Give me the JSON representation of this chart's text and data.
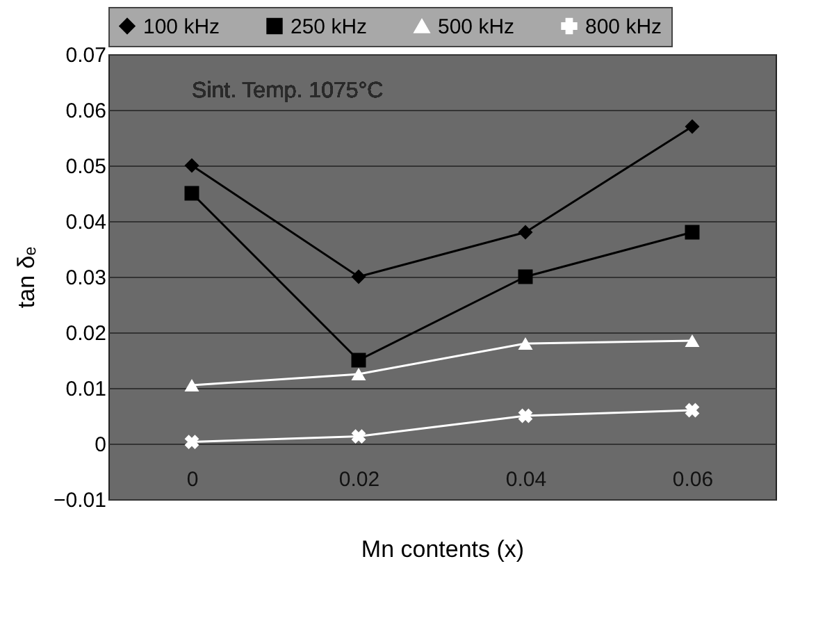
{
  "chart_data": {
    "type": "line",
    "xlabel": "Mn contents (x)",
    "ylabel": "tan δₑ",
    "annotations": [
      "Sint. Temp. 1075°C"
    ],
    "categories": [
      "0",
      "0.02",
      "0.04",
      "0.06"
    ],
    "series": [
      {
        "name": "100 kHz",
        "color": "#000000",
        "marker": "diamond",
        "values": [
          0.05,
          0.03,
          0.038,
          0.057
        ]
      },
      {
        "name": "250 kHz",
        "color": "#000000",
        "marker": "square",
        "values": [
          0.045,
          0.015,
          0.03,
          0.038
        ]
      },
      {
        "name": "500 kHz",
        "color": "#ffffff",
        "marker": "triangle",
        "values": [
          0.0105,
          0.0125,
          0.018,
          0.0185
        ]
      },
      {
        "name": "800 kHz",
        "color": "#ffffff",
        "marker": "cross",
        "values": [
          0.0003,
          0.0013,
          0.005,
          0.006
        ]
      }
    ],
    "ylim": [
      -0.01,
      0.07
    ],
    "yticks": [
      {
        "value": -0.01,
        "label": "−0.01"
      },
      0,
      0.01,
      0.02,
      0.03,
      0.04,
      0.05,
      0.06,
      0.07
    ],
    "grid": "y",
    "legend": "top",
    "line_style": "solid"
  }
}
